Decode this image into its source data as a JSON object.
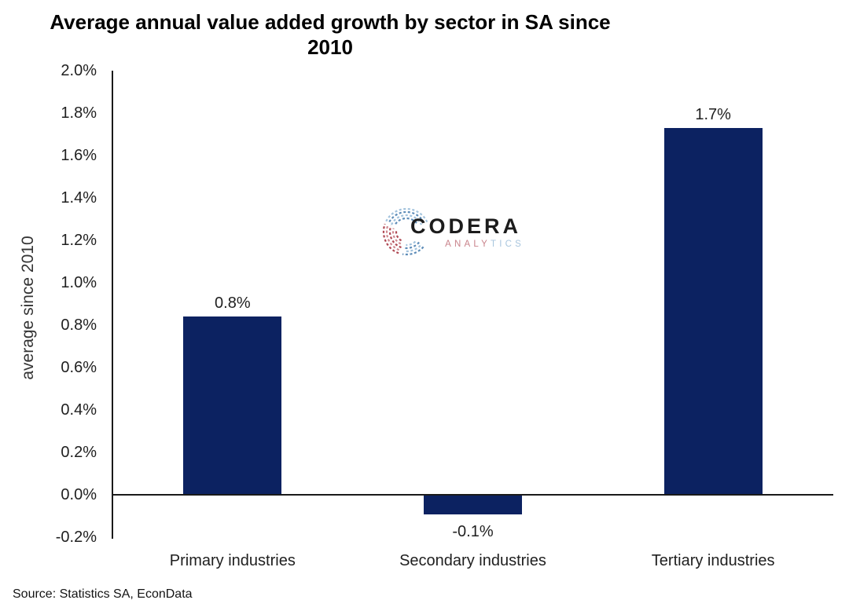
{
  "title": {
    "line1": "Average annual value added growth by sector in SA since",
    "line2": "2010"
  },
  "chart_data": {
    "type": "bar",
    "title": "Average annual value added growth by sector in SA since 2010",
    "categories": [
      "Primary industries",
      "Secondary industries",
      "Tertiary industries"
    ],
    "values": [
      0.84,
      -0.09,
      1.73
    ],
    "data_labels": [
      "0.8%",
      "-0.1%",
      "1.7%"
    ],
    "xlabel": "",
    "ylabel": "average since 2010",
    "ylim": [
      -0.2,
      2.0
    ],
    "ytick_step": 0.2,
    "ytick_labels": [
      "2.0%",
      "1.8%",
      "1.6%",
      "1.4%",
      "1.2%",
      "1.0%",
      "0.8%",
      "0.6%",
      "0.4%",
      "0.2%",
      "0.0%",
      "-0.2%"
    ],
    "grid": false,
    "legend": "none",
    "bar_color": "#0c2261"
  },
  "source": {
    "text": "Source: Statistics SA, EconData"
  },
  "logo": {
    "brand": "CODERA",
    "subtext": "ANALYTICS",
    "subtext_segments": [
      {
        "text": "ANALY",
        "color": "#c9838b"
      },
      {
        "text": "TICS",
        "color": "#a9c6de"
      }
    ],
    "icon": "codera-circuit-circle-icon",
    "icon_colors": {
      "red": "#b04a55",
      "red_light": "#cf8a91",
      "blue": "#5d8cb8",
      "blue_light": "#a3c3dd"
    }
  },
  "colors": {
    "bar": "#0c2261",
    "axis": "#1a1a1a",
    "text": "#1f1f1f",
    "title": "#000000"
  }
}
